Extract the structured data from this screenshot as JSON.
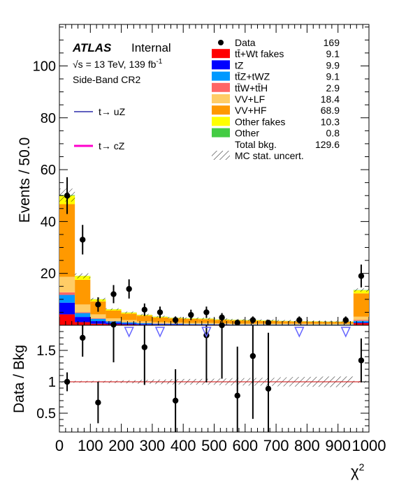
{
  "chart_data": {
    "type": "bar",
    "stacked": true,
    "experiment": "ATLAS",
    "status": "Internal",
    "energy_label_pre": "√s = 13 TeV, 139 fb",
    "energy_label_sup": "-1",
    "region": "Side-Band CR2",
    "ylabel": "Events / 50.0",
    "ratio_ylabel": "Data / Bkg",
    "xlabel_base": "χ",
    "xlabel_sup": "2",
    "x_bin_edges": [
      0,
      50,
      100,
      150,
      200,
      250,
      300,
      350,
      400,
      450,
      500,
      550,
      600,
      650,
      700,
      750,
      800,
      850,
      900,
      950,
      1000
    ],
    "xlim": [
      0,
      1000
    ],
    "ylim": [
      0,
      116
    ],
    "ratio_ylim": [
      0.2,
      1.9
    ],
    "x_ticks": [
      0,
      100,
      200,
      300,
      400,
      500,
      600,
      700,
      800,
      900,
      1000
    ],
    "y_ticks": [
      20,
      40,
      60,
      80,
      100
    ],
    "ratio_y_ticks": [
      0.5,
      1,
      1.5
    ],
    "ratio_y_tick_labels": [
      "0.5",
      "1",
      "1.5"
    ],
    "series": [
      {
        "name": "tt̄+Wt fakes",
        "color": "#ff0000",
        "values": [
          4.2,
          1.2,
          0.6,
          0.4,
          0.3,
          0.2,
          0.2,
          0.2,
          0.2,
          0.2,
          0.2,
          0.1,
          0.1,
          0.1,
          0.1,
          0.1,
          0.1,
          0.1,
          0.1,
          0.8
        ]
      },
      {
        "name": "tZ",
        "color": "#0000ff",
        "values": [
          4.5,
          2.0,
          1.0,
          0.6,
          0.4,
          0.3,
          0.2,
          0.2,
          0.1,
          0.1,
          0.1,
          0.1,
          0.1,
          0.1,
          0.1,
          0.1,
          0.05,
          0.05,
          0.05,
          0.3
        ]
      },
      {
        "name": "tt̄Z+tWZ",
        "color": "#0099ff",
        "values": [
          3.0,
          1.5,
          0.9,
          0.5,
          0.4,
          0.3,
          0.2,
          0.2,
          0.2,
          0.2,
          0.1,
          0.1,
          0.1,
          0.1,
          0.1,
          0.1,
          0.1,
          0.1,
          0.1,
          0.6
        ]
      },
      {
        "name": "tt̄W+tt̄H",
        "color": "#ff6666",
        "values": [
          1.0,
          0.3,
          0.2,
          0.15,
          0.1,
          0.1,
          0.1,
          0.05,
          0.05,
          0.05,
          0.05,
          0.05,
          0.05,
          0.05,
          0.05,
          0.05,
          0.05,
          0.05,
          0.05,
          0.4
        ]
      },
      {
        "name": "VV+LF",
        "color": "#ffcc66",
        "values": [
          6.0,
          3.0,
          1.5,
          1.0,
          0.8,
          0.6,
          0.5,
          0.4,
          0.4,
          0.4,
          0.3,
          0.3,
          0.3,
          0.3,
          0.3,
          0.3,
          0.3,
          0.3,
          0.3,
          1.2
        ]
      },
      {
        "name": "VV+HF",
        "color": "#ff9900",
        "values": [
          28.0,
          9.5,
          5.0,
          3.0,
          2.5,
          2.2,
          1.8,
          1.6,
          1.5,
          1.4,
          1.3,
          1.2,
          1.1,
          1.0,
          0.9,
          0.8,
          0.8,
          0.7,
          0.7,
          9.0
        ]
      },
      {
        "name": "Other fakes",
        "color": "#ffff00",
        "values": [
          3.3,
          1.5,
          0.8,
          0.5,
          0.4,
          0.3,
          0.3,
          0.2,
          0.2,
          0.2,
          0.2,
          0.2,
          0.2,
          0.2,
          0.1,
          0.1,
          0.1,
          0.1,
          0.1,
          1.2
        ]
      },
      {
        "name": "Other",
        "color": "#44cc44",
        "values": [
          0.2,
          0.05,
          0.05,
          0.05,
          0.05,
          0.05,
          0.05,
          0.05,
          0.05,
          0.05,
          0.05,
          0.05,
          0.05,
          0.05,
          0.05,
          0.05,
          0.05,
          0.05,
          0.05,
          0.1
        ]
      }
    ],
    "data": {
      "name": "Data",
      "x": [
        25,
        75,
        125,
        175,
        225,
        275,
        325,
        375,
        425,
        475,
        525,
        575,
        625,
        675,
        725,
        775,
        825,
        875,
        925,
        975
      ],
      "values": [
        50,
        33,
        8,
        12,
        14,
        6,
        5,
        2,
        4,
        5,
        3,
        1,
        2,
        1,
        null,
        2,
        null,
        null,
        2,
        19
      ],
      "errors": [
        7.1,
        5.7,
        2.8,
        3.5,
        3.7,
        2.4,
        2.2,
        1.4,
        2.0,
        2.2,
        1.7,
        1.0,
        1.4,
        1.0,
        null,
        1.4,
        null,
        null,
        1.4,
        4.4
      ]
    },
    "ratio": {
      "x": [
        25,
        75,
        125,
        175,
        225,
        275,
        325,
        375,
        425,
        475,
        525,
        575,
        625,
        675,
        775,
        925,
        975
      ],
      "values": [
        1.0,
        1.7,
        0.67,
        1.91,
        null,
        1.55,
        null,
        0.7,
        null,
        1.74,
        1.9,
        0.78,
        1.41,
        0.89,
        null,
        null,
        1.34
      ],
      "errors": [
        0.15,
        0.3,
        0.33,
        0.6,
        null,
        0.6,
        null,
        0.5,
        null,
        0.75,
        0.85,
        0.78,
        1.0,
        0.89,
        null,
        null,
        0.35
      ],
      "offscale_markers_x": [
        225,
        325,
        475,
        775,
        925
      ]
    },
    "signal_lines": [
      {
        "name": "t→ uZ",
        "color": "#000099"
      },
      {
        "name": "t→ cZ",
        "color": "#ff00cc"
      }
    ],
    "legend": {
      "placement": "top-right",
      "entries": [
        {
          "label": "Data",
          "value": "169",
          "kind": "data"
        },
        {
          "label": "tt̄+Wt fakes",
          "value": "9.1",
          "kind": "fill",
          "color": "#ff0000"
        },
        {
          "label": "tZ",
          "value": "9.9",
          "kind": "fill",
          "color": "#0000ff"
        },
        {
          "label": "tt̄Z+tWZ",
          "value": "9.1",
          "kind": "fill",
          "color": "#0099ff"
        },
        {
          "label": "tt̄W+tt̄H",
          "value": "2.9",
          "kind": "fill",
          "color": "#ff6666"
        },
        {
          "label": "VV+LF",
          "value": "18.4",
          "kind": "fill",
          "color": "#ffcc66"
        },
        {
          "label": "VV+HF",
          "value": "68.9",
          "kind": "fill",
          "color": "#ff9900"
        },
        {
          "label": "Other fakes",
          "value": "10.3",
          "kind": "fill",
          "color": "#ffff00"
        },
        {
          "label": "Other",
          "value": "0.8",
          "kind": "fill",
          "color": "#44cc44"
        },
        {
          "label": "Total bkg.",
          "value": "129.6",
          "kind": "none"
        },
        {
          "label": "MC stat. uncert.",
          "value": "",
          "kind": "hatch"
        }
      ]
    }
  }
}
